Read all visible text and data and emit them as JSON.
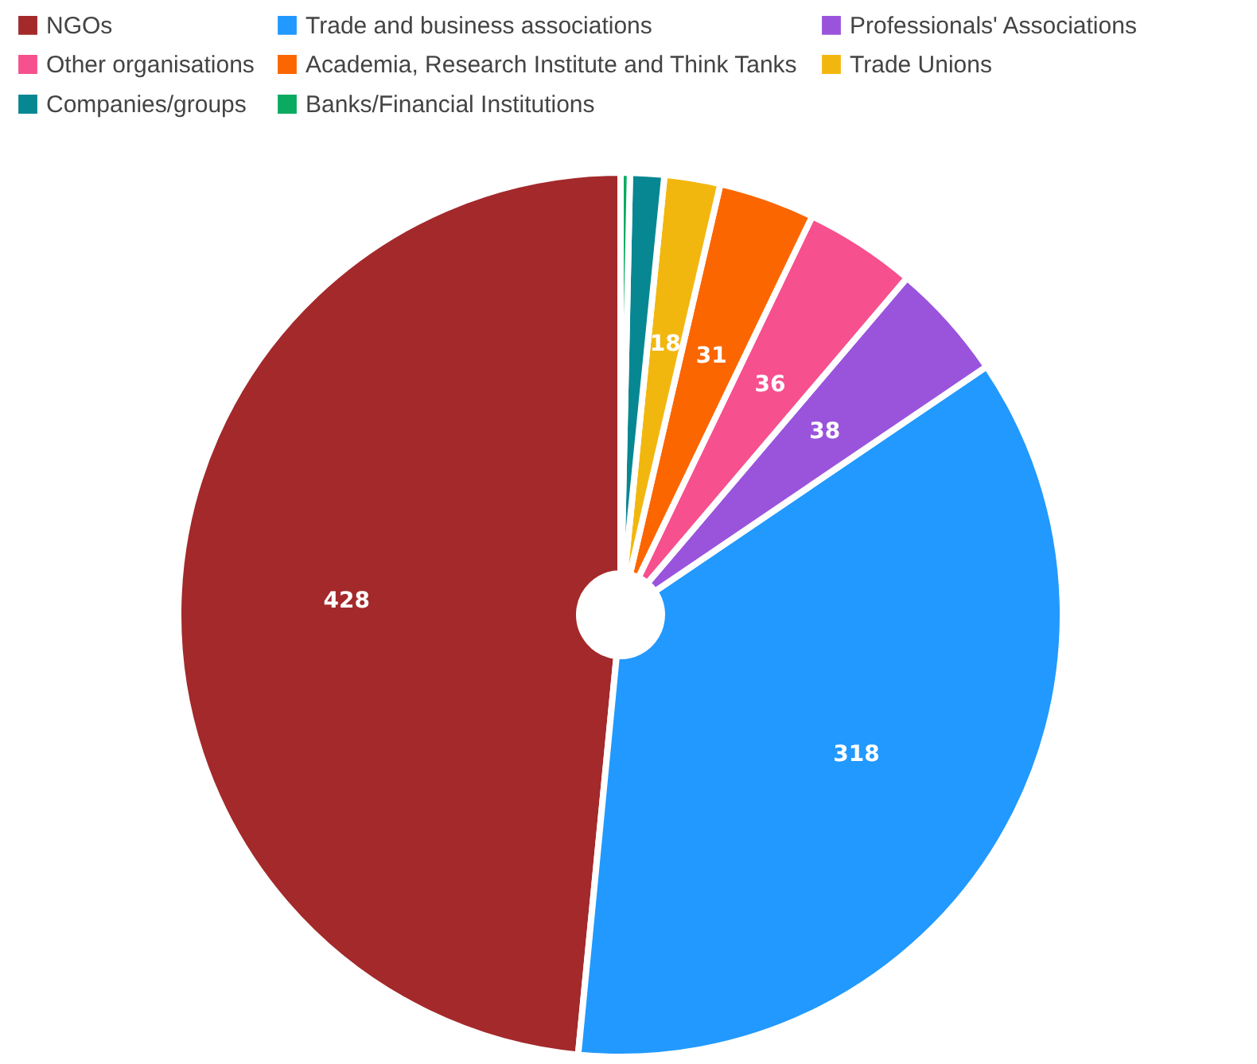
{
  "chart_data": {
    "type": "pie",
    "categories": [
      "NGOs",
      "Trade and business associations",
      "Professionals' Associations",
      "Other organisations",
      "Academia, Research Institute and Think Tanks",
      "Trade Unions",
      "Companies/groups",
      "Banks/Financial Institutions"
    ],
    "values": [
      428,
      318,
      38,
      36,
      31,
      18,
      11,
      3
    ],
    "colors": [
      "#a3292b",
      "#2299fe",
      "#9a54dc",
      "#f7508e",
      "#fb6600",
      "#f2b70f",
      "#078792",
      "#0aab61"
    ],
    "value_labels": [
      "428",
      "318",
      "38",
      "36",
      "31",
      "18",
      null,
      null
    ],
    "legend": "top"
  }
}
